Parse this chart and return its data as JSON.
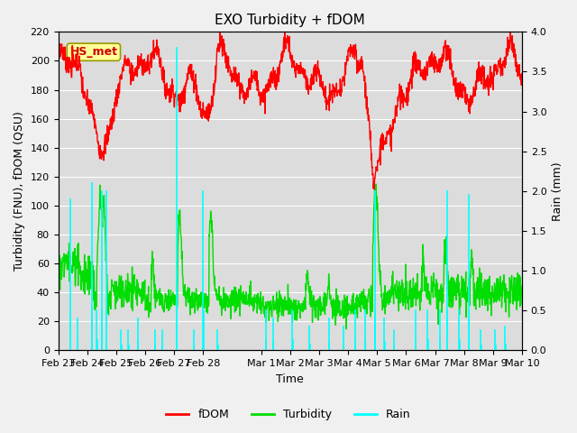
{
  "title": "EXO Turbidity + fDOM",
  "xlabel": "Time",
  "ylabel_left": "Turbidity (FNU), fDOM (QSU)",
  "ylabel_right": "Rain (mm)",
  "ylim_left": [
    0,
    220
  ],
  "ylim_right": [
    0,
    4.0
  ],
  "yticks_left": [
    0,
    20,
    40,
    60,
    80,
    100,
    120,
    140,
    160,
    180,
    200,
    220
  ],
  "yticks_right": [
    0.0,
    0.5,
    1.0,
    1.5,
    2.0,
    2.5,
    3.0,
    3.5,
    4.0
  ],
  "xtick_labels": [
    "Feb 23",
    "Feb 24",
    "Feb 25",
    "Feb 26",
    "Feb 27",
    "Feb 28",
    "Mar 1",
    "Mar 2",
    "Mar 3",
    "Mar 4",
    "Mar 5",
    "Mar 6",
    "Mar 7",
    "Mar 8",
    "Mar 9",
    "Mar 10"
  ],
  "fdom_color": "#ff0000",
  "turbidity_color": "#00dd00",
  "rain_color": "#00ffff",
  "label_box_facecolor": "#ffff99",
  "label_box_edgecolor": "#999900",
  "label_text": "HS_met",
  "label_text_color": "#cc0000",
  "bg_color": "#dcdcdc",
  "grid_color": "#ffffff",
  "legend_labels": [
    "fDOM",
    "Turbidity",
    "Rain"
  ],
  "fdom_lw": 1.0,
  "turb_lw": 1.0,
  "rain_lw": 1.2,
  "title_fontsize": 11,
  "axis_fontsize": 9,
  "tick_fontsize": 8
}
